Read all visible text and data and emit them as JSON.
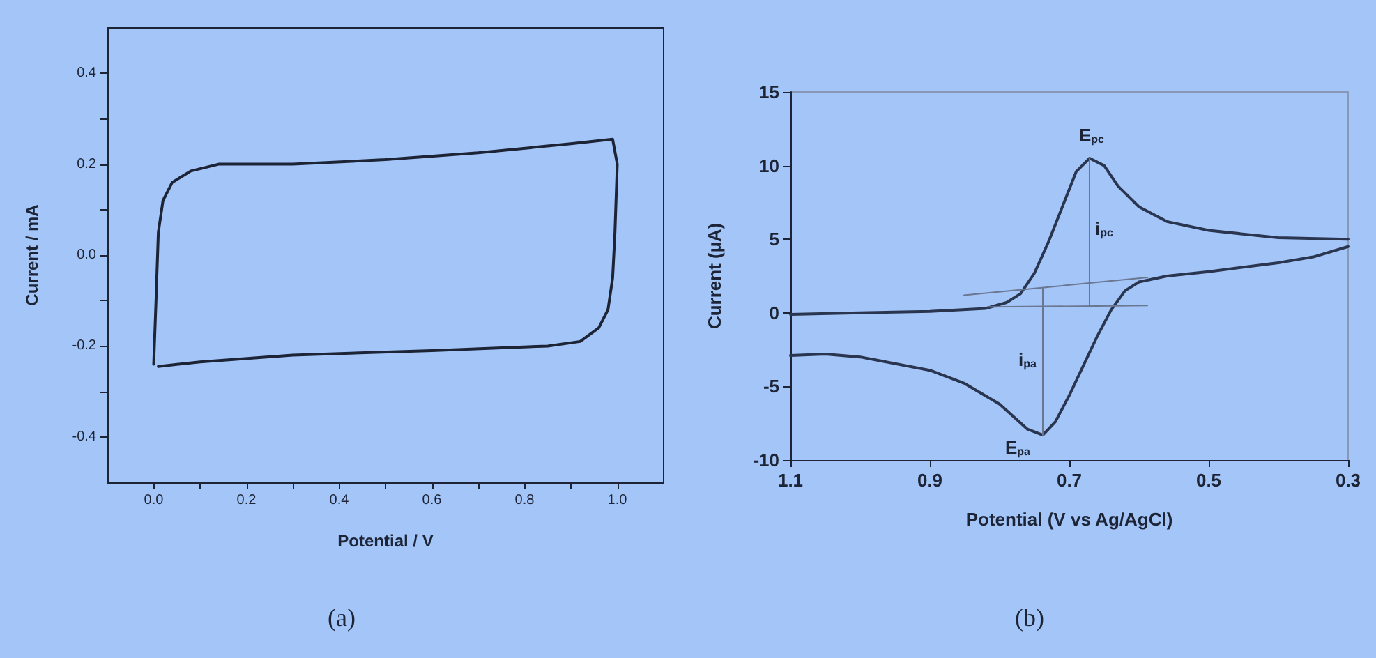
{
  "chart_data": [
    {
      "type": "line",
      "xlabel": "Potential / V",
      "ylabel": "Current / mA",
      "marker": "none",
      "line_style": "solid",
      "xlim": [
        -0.1,
        1.1
      ],
      "ylim": [
        -0.5,
        0.5
      ],
      "xticks": [
        {
          "value": 0,
          "label": "0.0"
        },
        {
          "value": 0.1,
          "label": null
        },
        0.2,
        {
          "value": 0.3,
          "label": null
        },
        0.4,
        {
          "value": 0.5,
          "label": null
        },
        0.6,
        {
          "value": 0.7,
          "label": null
        },
        0.8,
        {
          "value": 0.9,
          "label": null
        },
        {
          "value": 1,
          "label": "1.0"
        }
      ],
      "yticks": [
        -0.4,
        {
          "value": -0.3,
          "label": null
        },
        -0.2,
        {
          "value": -0.1,
          "label": null
        },
        {
          "value": 0,
          "label": "0.0"
        },
        {
          "value": 0.1,
          "label": null
        },
        0.2,
        {
          "value": 0.3,
          "label": null
        },
        0.4
      ],
      "series": [
        {
          "color": "#1c2436",
          "x": [
            0.0,
            0.005,
            0.01,
            0.02,
            0.04,
            0.08,
            0.14,
            0.3,
            0.5,
            0.7,
            0.9,
            0.99,
            1.0,
            0.995,
            0.99,
            0.98,
            0.96,
            0.92,
            0.85,
            0.6,
            0.3,
            0.1,
            0.01
          ],
          "values": [
            -0.24,
            -0.1,
            0.05,
            0.12,
            0.16,
            0.185,
            0.2,
            0.2,
            0.21,
            0.225,
            0.245,
            0.255,
            0.2,
            0.05,
            -0.05,
            -0.12,
            -0.16,
            -0.19,
            -0.2,
            -0.21,
            -0.22,
            -0.235,
            -0.245
          ]
        }
      ],
      "annotations": [
        "(a)"
      ]
    },
    {
      "type": "line",
      "xlabel": "Potential (V vs Ag/AgCl)",
      "ylabel": "Current (µA)",
      "marker": "none",
      "line_style": "solid",
      "xlim": [
        1.1,
        0.3
      ],
      "ylim": [
        -10,
        15
      ],
      "xticks": [
        1.1,
        0.9,
        0.7,
        0.5,
        0.3
      ],
      "yticks": [
        -10,
        -5,
        0,
        5,
        10,
        15
      ],
      "series": [
        {
          "color": "#2a3550",
          "x": [
            1.1,
            1.0,
            0.9,
            0.82,
            0.79,
            0.77,
            0.75,
            0.73,
            0.71,
            0.69,
            0.671,
            0.65,
            0.63,
            0.6,
            0.56,
            0.5,
            0.4,
            0.3
          ],
          "values": [
            -0.1,
            0.0,
            0.1,
            0.3,
            0.7,
            1.3,
            2.7,
            4.8,
            7.2,
            9.6,
            10.5,
            10.0,
            8.6,
            7.2,
            6.2,
            5.6,
            5.1,
            5.0
          ]
        },
        {
          "color": "#2a3550",
          "x": [
            0.3,
            0.35,
            0.4,
            0.5,
            0.56,
            0.6,
            0.62,
            0.64,
            0.66,
            0.68,
            0.7,
            0.72,
            0.738,
            0.76,
            0.8,
            0.85,
            0.9,
            1.0,
            1.05,
            1.1
          ],
          "values": [
            4.5,
            3.8,
            3.4,
            2.8,
            2.5,
            2.1,
            1.5,
            0.2,
            -1.6,
            -3.6,
            -5.6,
            -7.4,
            -8.3,
            -7.9,
            -6.2,
            -4.8,
            -3.9,
            -3.0,
            -2.8,
            -2.9
          ]
        },
        {
          "color": "#6b7690",
          "x": [
            0.851,
            0.588
          ],
          "values": [
            1.2,
            2.4
          ]
        },
        {
          "color": "#6b7690",
          "x": [
            0.815,
            0.588
          ],
          "values": [
            0.4,
            0.5
          ]
        },
        {
          "color": "#6b7690",
          "x": [
            0.671,
            0.671
          ],
          "values": [
            0.4,
            10.5
          ]
        },
        {
          "color": "#6b7690",
          "x": [
            0.738,
            0.738
          ],
          "values": [
            1.7,
            -8.3
          ]
        }
      ],
      "annotations": [
        "E$_{pc}$",
        "i$_{pc}$",
        "i$_{pa}$",
        "E$_{pa}$",
        "(b)"
      ]
    }
  ]
}
